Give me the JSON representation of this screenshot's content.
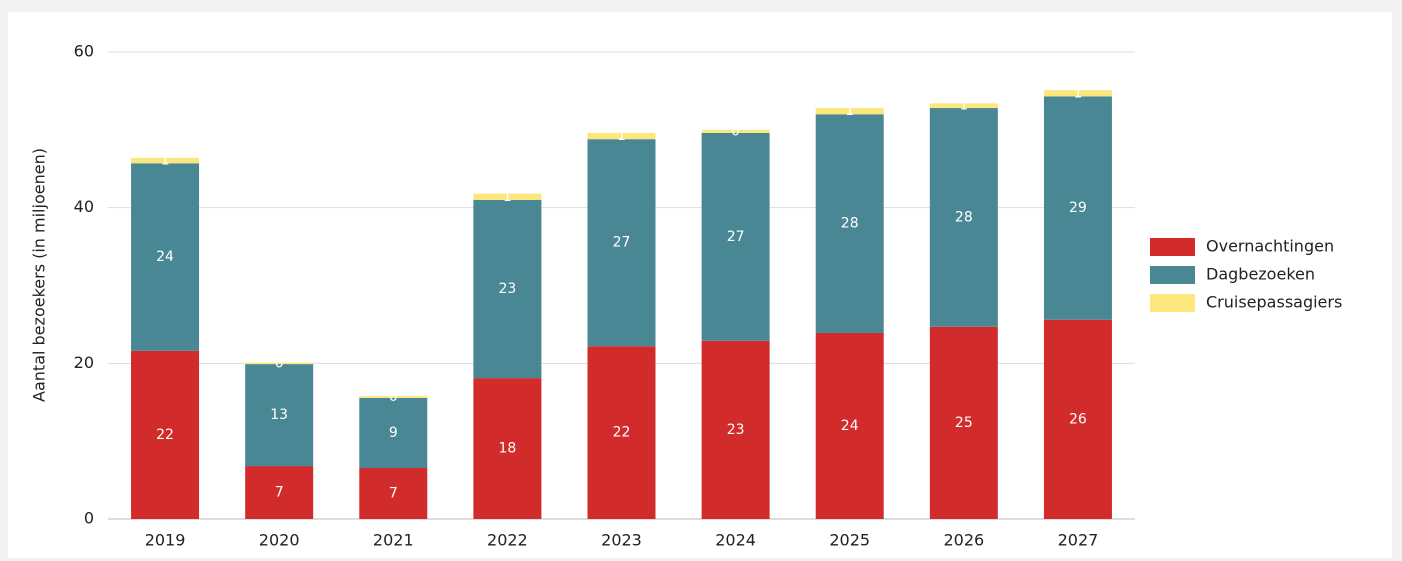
{
  "chart_data": {
    "type": "stacked-bar",
    "y_label": "Aantal bezoekers (in miljoenen)",
    "categories": [
      "2019",
      "2020",
      "2021",
      "2022",
      "2023",
      "2024",
      "2025",
      "2026",
      "2027"
    ],
    "series": [
      {
        "name": "Overnachtingen",
        "color": "#d12b2b",
        "values": [
          21.6,
          6.8,
          6.55,
          18.1,
          22.2,
          22.9,
          23.9,
          24.7,
          25.6
        ],
        "value_labels": [
          "22",
          "7",
          "7",
          "18",
          "22",
          "23",
          "24",
          "25",
          "26"
        ]
      },
      {
        "name": "Dagbezoeken",
        "color": "#4a8794",
        "values": [
          24.1,
          13.1,
          9.0,
          22.9,
          26.6,
          26.7,
          28.1,
          28.1,
          28.7
        ],
        "value_labels": [
          "24",
          "13",
          "9",
          "23",
          "27",
          "27",
          "28",
          "28",
          "29"
        ]
      },
      {
        "name": "Cruisepassagiers",
        "color": "#fbe77c",
        "values": [
          0.7,
          0.2,
          0.25,
          0.8,
          0.8,
          0.4,
          0.8,
          0.6,
          0.8
        ],
        "value_labels": [
          "1",
          "0",
          "0",
          "1",
          "1",
          "0",
          "1",
          "1",
          "1"
        ]
      }
    ],
    "ylim": [
      0,
      60
    ],
    "yticks": [
      0,
      20,
      40,
      60
    ],
    "grid": true,
    "legend": "right"
  }
}
